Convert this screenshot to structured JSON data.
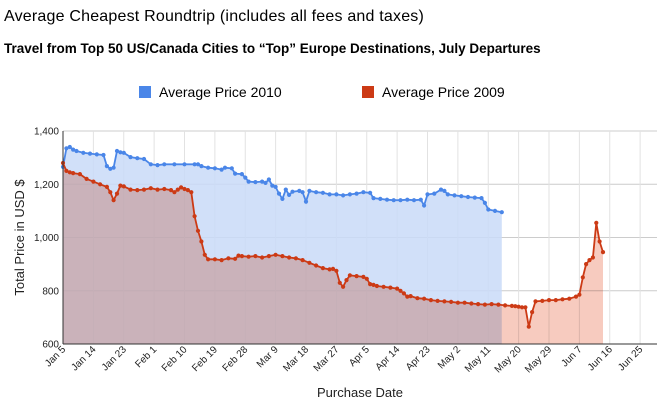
{
  "title": "Average Cheapest Roundtrip (includes all fees and taxes)",
  "subtitle": "Travel from Top 50 US/Canada Cities to “Top” Europe Destinations, July Departures",
  "chart_data": {
    "type": "area",
    "title": "Average Cheapest Roundtrip (includes all fees and taxes)",
    "subtitle": "Travel from Top 50 US/Canada Cities to “Top” Europe Destinations, July Departures",
    "xlabel": "Purchase Date",
    "ylabel": "Total Price in USD $",
    "ylim": [
      600,
      1400
    ],
    "yticks": [
      600,
      800,
      1000,
      1200,
      1400
    ],
    "ytick_labels": [
      "600",
      "800",
      "1,000",
      "1,200",
      "1,400"
    ],
    "xlim_days": [
      0,
      176
    ],
    "xtick_labels": [
      "Jan 5",
      "Jan 14",
      "Jan 23",
      "Feb 1",
      "Feb 10",
      "Feb 19",
      "Feb 28",
      "Mar 9",
      "Mar 18",
      "Mar 27",
      "Apr 5",
      "Apr 14",
      "Apr 23",
      "May 2",
      "May 11",
      "May 20",
      "May 29",
      "Jun 7",
      "Jun 16",
      "Jun 25"
    ],
    "legend_position": "top",
    "grid": true,
    "series": [
      {
        "name": "Average Price 2010",
        "color": "#4a86e8",
        "fill": "#c9daf8",
        "points": [
          [
            0,
            1265
          ],
          [
            1,
            1335
          ],
          [
            2,
            1340
          ],
          [
            3,
            1330
          ],
          [
            4,
            1325
          ],
          [
            6,
            1318
          ],
          [
            8,
            1315
          ],
          [
            10,
            1312
          ],
          [
            12,
            1310
          ],
          [
            13,
            1268
          ],
          [
            14,
            1258
          ],
          [
            15,
            1262
          ],
          [
            16,
            1325
          ],
          [
            17,
            1320
          ],
          [
            18,
            1318
          ],
          [
            20,
            1302
          ],
          [
            22,
            1298
          ],
          [
            24,
            1295
          ],
          [
            26,
            1275
          ],
          [
            28,
            1272
          ],
          [
            30,
            1275
          ],
          [
            33,
            1275
          ],
          [
            36,
            1275
          ],
          [
            39,
            1275
          ],
          [
            40,
            1275
          ],
          [
            41,
            1268
          ],
          [
            43,
            1262
          ],
          [
            45,
            1260
          ],
          [
            47,
            1255
          ],
          [
            48,
            1262
          ],
          [
            50,
            1260
          ],
          [
            51,
            1240
          ],
          [
            53,
            1238
          ],
          [
            54,
            1225
          ],
          [
            55,
            1210
          ],
          [
            57,
            1208
          ],
          [
            59,
            1210
          ],
          [
            60,
            1205
          ],
          [
            61,
            1218
          ],
          [
            62,
            1195
          ],
          [
            63,
            1190
          ],
          [
            64,
            1165
          ],
          [
            65,
            1145
          ],
          [
            66,
            1180
          ],
          [
            67,
            1160
          ],
          [
            68,
            1172
          ],
          [
            70,
            1175
          ],
          [
            71,
            1170
          ],
          [
            72,
            1135
          ],
          [
            73,
            1175
          ],
          [
            75,
            1170
          ],
          [
            77,
            1168
          ],
          [
            79,
            1162
          ],
          [
            81,
            1162
          ],
          [
            83,
            1158
          ],
          [
            85,
            1162
          ],
          [
            87,
            1165
          ],
          [
            89,
            1170
          ],
          [
            91,
            1168
          ],
          [
            92,
            1148
          ],
          [
            94,
            1145
          ],
          [
            96,
            1142
          ],
          [
            98,
            1140
          ],
          [
            100,
            1140
          ],
          [
            102,
            1142
          ],
          [
            104,
            1140
          ],
          [
            106,
            1142
          ],
          [
            107,
            1120
          ],
          [
            108,
            1162
          ],
          [
            110,
            1165
          ],
          [
            112,
            1180
          ],
          [
            113,
            1175
          ],
          [
            114,
            1162
          ],
          [
            116,
            1158
          ],
          [
            118,
            1155
          ],
          [
            120,
            1152
          ],
          [
            122,
            1150
          ],
          [
            124,
            1148
          ],
          [
            125,
            1130
          ],
          [
            126,
            1105
          ],
          [
            128,
            1100
          ],
          [
            130,
            1095
          ]
        ]
      },
      {
        "name": "Average Price 2009",
        "color": "#cc3a15",
        "fill": "#f4b9aa",
        "points": [
          [
            0,
            1280
          ],
          [
            1,
            1250
          ],
          [
            2,
            1245
          ],
          [
            3,
            1242
          ],
          [
            5,
            1238
          ],
          [
            7,
            1220
          ],
          [
            9,
            1210
          ],
          [
            11,
            1200
          ],
          [
            13,
            1190
          ],
          [
            14,
            1170
          ],
          [
            15,
            1140
          ],
          [
            16,
            1165
          ],
          [
            17,
            1195
          ],
          [
            18,
            1192
          ],
          [
            20,
            1180
          ],
          [
            22,
            1178
          ],
          [
            24,
            1180
          ],
          [
            26,
            1185
          ],
          [
            28,
            1180
          ],
          [
            30,
            1182
          ],
          [
            32,
            1178
          ],
          [
            33,
            1170
          ],
          [
            34,
            1180
          ],
          [
            35,
            1188
          ],
          [
            36,
            1182
          ],
          [
            37,
            1178
          ],
          [
            38,
            1170
          ],
          [
            39,
            1080
          ],
          [
            40,
            1025
          ],
          [
            41,
            985
          ],
          [
            42,
            935
          ],
          [
            43,
            918
          ],
          [
            45,
            918
          ],
          [
            47,
            915
          ],
          [
            49,
            922
          ],
          [
            51,
            920
          ],
          [
            52,
            932
          ],
          [
            53,
            930
          ],
          [
            55,
            928
          ],
          [
            57,
            930
          ],
          [
            59,
            925
          ],
          [
            61,
            930
          ],
          [
            63,
            935
          ],
          [
            65,
            930
          ],
          [
            67,
            925
          ],
          [
            69,
            922
          ],
          [
            71,
            915
          ],
          [
            73,
            905
          ],
          [
            75,
            895
          ],
          [
            77,
            885
          ],
          [
            79,
            880
          ],
          [
            80,
            882
          ],
          [
            81,
            875
          ],
          [
            82,
            830
          ],
          [
            83,
            815
          ],
          [
            84,
            840
          ],
          [
            85,
            858
          ],
          [
            87,
            855
          ],
          [
            89,
            852
          ],
          [
            90,
            845
          ],
          [
            91,
            825
          ],
          [
            92,
            822
          ],
          [
            93,
            818
          ],
          [
            95,
            815
          ],
          [
            97,
            812
          ],
          [
            99,
            808
          ],
          [
            100,
            800
          ],
          [
            101,
            790
          ],
          [
            102,
            778
          ],
          [
            103,
            780
          ],
          [
            105,
            772
          ],
          [
            107,
            770
          ],
          [
            109,
            765
          ],
          [
            111,
            762
          ],
          [
            113,
            760
          ],
          [
            115,
            758
          ],
          [
            117,
            755
          ],
          [
            119,
            755
          ],
          [
            121,
            752
          ],
          [
            123,
            750
          ],
          [
            125,
            748
          ],
          [
            127,
            750
          ],
          [
            129,
            748
          ],
          [
            131,
            745
          ],
          [
            133,
            743
          ],
          [
            134,
            742
          ],
          [
            135,
            740
          ],
          [
            136,
            738
          ],
          [
            137,
            738
          ],
          [
            138,
            665
          ],
          [
            139,
            720
          ],
          [
            140,
            760
          ],
          [
            142,
            762
          ],
          [
            144,
            765
          ],
          [
            146,
            765
          ],
          [
            148,
            768
          ],
          [
            150,
            770
          ],
          [
            152,
            778
          ],
          [
            153,
            785
          ],
          [
            154,
            850
          ],
          [
            155,
            900
          ],
          [
            156,
            915
          ],
          [
            157,
            925
          ],
          [
            158,
            1055
          ],
          [
            159,
            985
          ],
          [
            160,
            945
          ]
        ]
      }
    ]
  }
}
